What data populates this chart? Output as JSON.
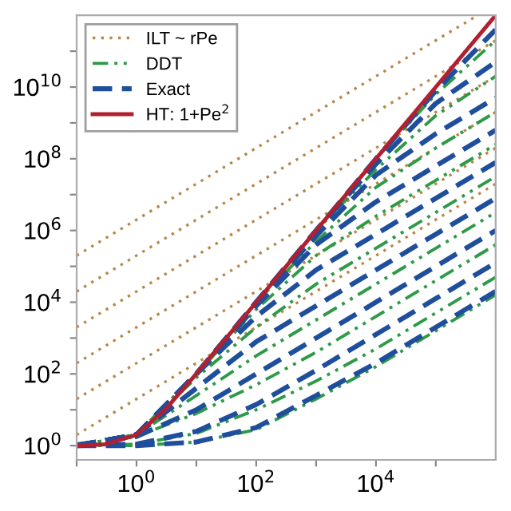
{
  "chart_data": {
    "type": "line",
    "x": [
      0.1,
      1,
      10,
      100,
      1000,
      10000,
      100000,
      1000000
    ],
    "xlim": [
      0.1,
      1000000
    ],
    "ylim": [
      0.4,
      1000000000000
    ],
    "log": "xy",
    "grid": false,
    "legend": "top left",
    "marker": "none",
    "xticks": [
      {
        "value": 0.1,
        "label": null
      },
      {
        "value": 1,
        "label": "10$^{0}$"
      },
      {
        "value": 10,
        "label": null
      },
      {
        "value": 100,
        "label": "10$^{2}$"
      },
      {
        "value": 1000,
        "label": null
      },
      {
        "value": 10000,
        "label": "10$^{4}$"
      },
      {
        "value": 100000,
        "label": null
      }
    ],
    "yticks": [
      {
        "value": 1,
        "label": "10$^{0}$"
      },
      {
        "value": 10,
        "label": null
      },
      {
        "value": 100,
        "label": "10$^{2}$"
      },
      {
        "value": 1000,
        "label": null
      },
      {
        "value": 10000,
        "label": "10$^{4}$"
      },
      {
        "value": 100000,
        "label": null
      },
      {
        "value": 1000000,
        "label": "10$^{6}$"
      },
      {
        "value": 10000000,
        "label": null
      },
      {
        "value": 100000000,
        "label": "10$^{8}$"
      },
      {
        "value": 1000000000,
        "label": null
      },
      {
        "value": 10000000000,
        "label": "10$^{10}$"
      },
      {
        "value": 100000000000,
        "label": null
      }
    ],
    "series": [
      {
        "name": "ILT ~ rPe",
        "color": "#b8864a",
        "line_style": "dotted",
        "x": [
          0.1,
          1000000
        ],
        "values": [
          2,
          20000000
        ]
      },
      {
        "color": "#b8864a",
        "line_style": "dotted",
        "x": [
          0.1,
          1000000
        ],
        "values": [
          20,
          200000000
        ]
      },
      {
        "color": "#b8864a",
        "line_style": "dotted",
        "x": [
          0.1,
          1000000
        ],
        "values": [
          200,
          2000000000
        ]
      },
      {
        "color": "#b8864a",
        "line_style": "dotted",
        "x": [
          0.1,
          1000000
        ],
        "values": [
          2000,
          20000000000
        ]
      },
      {
        "color": "#b8864a",
        "line_style": "dotted",
        "x": [
          0.1,
          1000000
        ],
        "values": [
          20000,
          200000000000
        ]
      },
      {
        "color": "#b8864a",
        "line_style": "dotted",
        "x": [
          0.1,
          500000
        ],
        "values": [
          200000,
          1000000000000
        ]
      },
      {
        "name": "DDT",
        "color": "#2e9a48",
        "line_style": "dashdot",
        "values": [
          1,
          2,
          100,
          10000,
          1000000,
          100000000,
          6300000000,
          200000000000
        ]
      },
      {
        "color": "#2e9a48",
        "line_style": "dashdot",
        "values": [
          1,
          2,
          100,
          10000,
          1000000,
          50000000,
          1600000000,
          20000000000
        ]
      },
      {
        "color": "#2e9a48",
        "line_style": "dashdot",
        "values": [
          1,
          2,
          100,
          10000,
          500000,
          16000000,
          200000000,
          2000000000
        ]
      },
      {
        "color": "#2e9a48",
        "line_style": "dashdot",
        "values": [
          1,
          2,
          100,
          6300,
          200000,
          2500000,
          25000000,
          250000000
        ]
      },
      {
        "color": "#2e9a48",
        "line_style": "dashdot",
        "values": [
          1,
          2,
          79,
          2000,
          32000,
          320000,
          3200000,
          32000000
        ]
      },
      {
        "color": "#2e9a48",
        "line_style": "dashdot",
        "values": [
          1,
          2,
          25,
          320,
          3200,
          32000,
          320000,
          3200000
        ]
      },
      {
        "color": "#2e9a48",
        "line_style": "dashdot",
        "values": [
          1.05,
          1.8,
          7.9,
          50,
          400,
          4000,
          40000,
          400000
        ]
      },
      {
        "color": "#2e9a48",
        "line_style": "dashdot",
        "values": [
          1,
          1.1,
          2.2,
          10,
          63,
          500,
          5000,
          50000
        ]
      },
      {
        "color": "#2e9a48",
        "line_style": "dashdot",
        "values": [
          1,
          1,
          1.26,
          2.8,
          20,
          160,
          1600,
          16000
        ]
      },
      {
        "name": "Exact",
        "color": "#1f4e9c",
        "line_style": "dashed",
        "values": [
          1,
          2,
          100,
          10000,
          1000000,
          100000000,
          7900000000,
          400000000000
        ]
      },
      {
        "color": "#1f4e9c",
        "line_style": "dashed",
        "values": [
          1,
          2,
          100,
          10000,
          1000000,
          71000000,
          3500000000,
          50000000000
        ]
      },
      {
        "color": "#1f4e9c",
        "line_style": "dashed",
        "values": [
          1,
          2,
          100,
          10000,
          710000,
          35000000,
          500000000,
          5000000000
        ]
      },
      {
        "color": "#1f4e9c",
        "line_style": "dashed",
        "values": [
          1,
          2,
          100,
          7900,
          400000,
          6300000,
          63000000,
          630000000
        ]
      },
      {
        "color": "#1f4e9c",
        "line_style": "dashed",
        "values": [
          1,
          2,
          100,
          4000,
          79000,
          790000,
          7900000,
          79000000
        ]
      },
      {
        "color": "#1f4e9c",
        "line_style": "dashed",
        "values": [
          1,
          2,
          40,
          790,
          7900,
          79000,
          790000,
          7900000
        ]
      },
      {
        "color": "#1f4e9c",
        "line_style": "dashed",
        "values": [
          1.05,
          1.8,
          10,
          100,
          1000,
          10000,
          100000,
          1000000
        ]
      },
      {
        "color": "#1f4e9c",
        "line_style": "dashed",
        "values": [
          1,
          1.1,
          2.5,
          14,
          126,
          1260,
          12600,
          126000
        ]
      },
      {
        "color": "#1f4e9c",
        "line_style": "dashed",
        "values": [
          1,
          1,
          1.26,
          3.2,
          25,
          200,
          2000,
          20000
        ]
      },
      {
        "name": "HT: 1+Pe$^{2}$",
        "color": "#b22030",
        "line_style": "solid",
        "x": [
          0.1,
          0.3,
          1,
          3,
          10,
          100,
          1000,
          10000,
          100000,
          1000000
        ],
        "values": [
          1.01,
          1.09,
          2,
          10,
          101,
          10000,
          1000000,
          100000000,
          10000000000,
          1000000000000
        ]
      }
    ]
  }
}
